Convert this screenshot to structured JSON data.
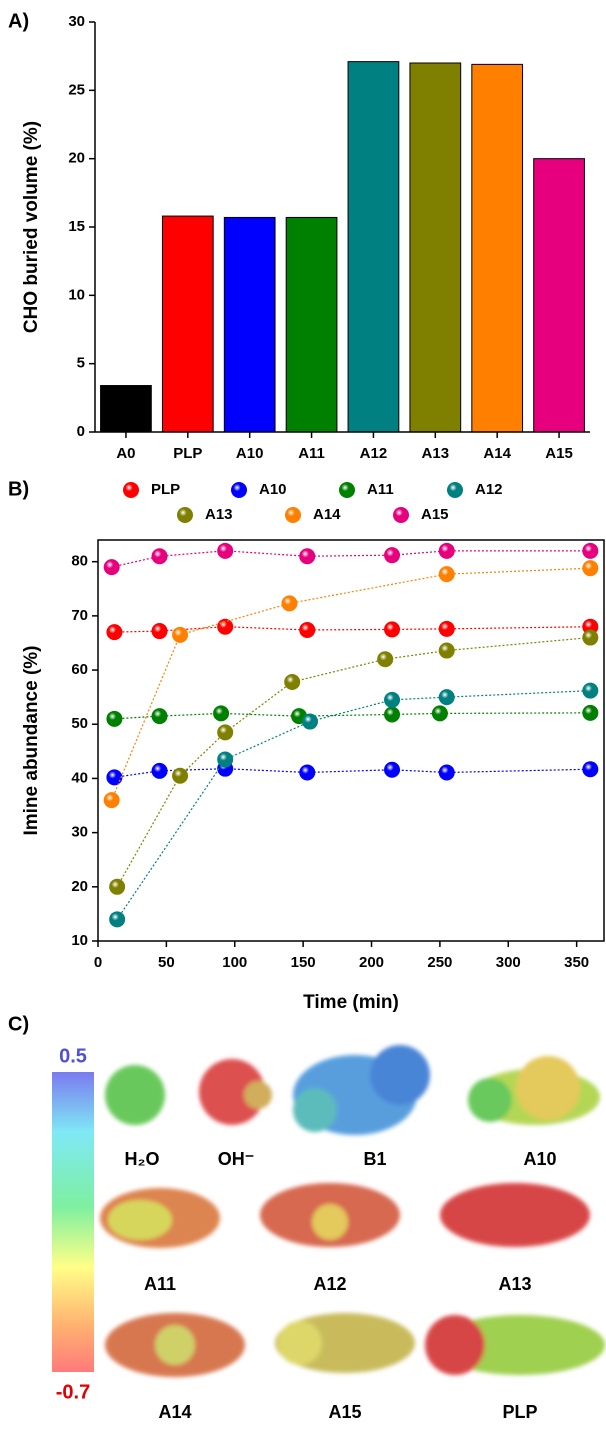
{
  "chart_data": [
    {
      "type": "bar",
      "label": "A)",
      "ylabel": "CHO buried volume (%)",
      "categories": [
        "A0",
        "PLP",
        "A10",
        "A11",
        "A12",
        "A13",
        "A14",
        "A15"
      ],
      "values": [
        3.4,
        15.8,
        15.7,
        15.7,
        27.1,
        27.0,
        26.9,
        20.0
      ],
      "colors": [
        "#000000",
        "#ff0000",
        "#0000ff",
        "#008000",
        "#008080",
        "#808000",
        "#ff8000",
        "#e6007e"
      ],
      "ylim": [
        0,
        30
      ],
      "yticks": [
        0,
        5,
        10,
        15,
        20,
        25,
        30
      ]
    },
    {
      "type": "scatter",
      "label": "B)",
      "xlabel": "Time (min)",
      "ylabel": "Imine abundance (%)",
      "xlim": [
        0,
        370
      ],
      "xticks": [
        0,
        50,
        100,
        150,
        200,
        250,
        300,
        350
      ],
      "ylim": [
        10,
        84
      ],
      "yticks": [
        10,
        20,
        30,
        40,
        50,
        60,
        70,
        80
      ],
      "series": [
        {
          "name": "PLP",
          "color": "#ff0000",
          "x": [
            12,
            45,
            93,
            153,
            215,
            255,
            360
          ],
          "values": [
            67,
            67.2,
            68,
            67.4,
            67.5,
            67.6,
            68
          ]
        },
        {
          "name": "A10",
          "color": "#0000ff",
          "x": [
            12,
            45,
            93,
            153,
            215,
            255,
            360
          ],
          "values": [
            40.2,
            41.4,
            41.8,
            41.1,
            41.6,
            41.1,
            41.7
          ]
        },
        {
          "name": "A11",
          "color": "#008000",
          "x": [
            12,
            45,
            90,
            147,
            215,
            250,
            360
          ],
          "values": [
            51,
            51.5,
            52,
            51.5,
            51.8,
            52,
            52.1
          ]
        },
        {
          "name": "A12",
          "color": "#008080",
          "x": [
            14,
            93,
            155,
            215,
            255,
            360
          ],
          "values": [
            14,
            43.5,
            50.5,
            54.5,
            55,
            56.2
          ]
        },
        {
          "name": "A13",
          "color": "#808000",
          "x": [
            14,
            60,
            93,
            142,
            210,
            255,
            360
          ],
          "values": [
            20,
            40.5,
            48.5,
            57.8,
            62,
            63.6,
            66
          ]
        },
        {
          "name": "A14",
          "color": "#ff8000",
          "x": [
            10,
            60,
            140,
            255,
            360
          ],
          "values": [
            36,
            66.5,
            72.3,
            77.7,
            78.8
          ]
        },
        {
          "name": "A15",
          "color": "#e6007e",
          "x": [
            10,
            45,
            93,
            153,
            215,
            255,
            360
          ],
          "values": [
            79,
            81,
            82,
            81,
            81.2,
            82,
            82
          ]
        }
      ]
    }
  ],
  "panel_c": {
    "label": "C)",
    "colorbar": {
      "max": 0.5,
      "min": -0.7
    },
    "molecules": [
      "H₂O",
      "OH⁻",
      "B1",
      "A10",
      "A11",
      "A12",
      "A13",
      "A14",
      "A15",
      "PLP"
    ]
  }
}
